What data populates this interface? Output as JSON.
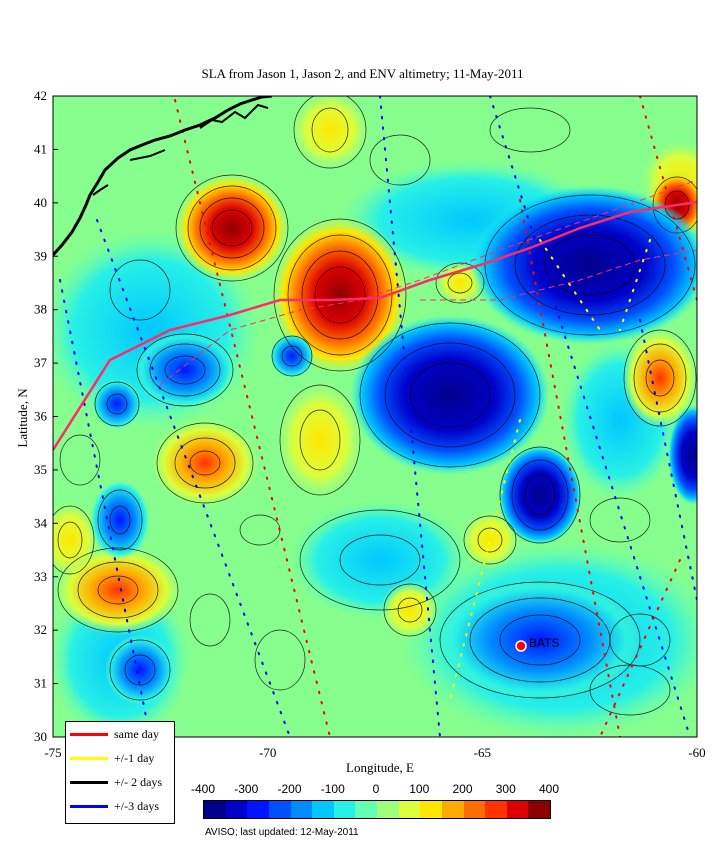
{
  "title": "SLA from Jason 1, Jason 2, and ENV altimetry;  11-May-2011",
  "axes": {
    "xlabel": "Longitude, E",
    "ylabel": "Latitude, N",
    "x_ticks": [
      "-75",
      "-70",
      "-65",
      "-60"
    ],
    "y_ticks": [
      "42",
      "41",
      "40",
      "39",
      "38",
      "37",
      "36",
      "35",
      "34",
      "33",
      "32",
      "31",
      "30"
    ]
  },
  "legend": {
    "items": [
      {
        "label": "same day",
        "color": "#ff0000"
      },
      {
        "label": "+/-1 day",
        "color": "#ffff00"
      },
      {
        "label": "+/- 2 days",
        "color": "#000000"
      },
      {
        "label": "+/-3 days",
        "color": "#0000ff"
      }
    ]
  },
  "colorbar": {
    "ticks": [
      "-400",
      "-300",
      "-200",
      "-100",
      "0",
      "100",
      "200",
      "300",
      "400"
    ],
    "colors": [
      "#00008c",
      "#0000c8",
      "#0014ff",
      "#0050ff",
      "#008cff",
      "#00c8ff",
      "#28f0e6",
      "#64ffb4",
      "#a0ff78",
      "#dcff3c",
      "#ffe600",
      "#ffaa00",
      "#ff6e00",
      "#ff3200",
      "#dc0000",
      "#8c0000"
    ]
  },
  "marker": {
    "label": "BATS",
    "color": "#ff0000"
  },
  "credit": "AVISO; last updated: 12-May-2011",
  "map_extent": {
    "lon": [
      -75,
      -60
    ],
    "lat": [
      30,
      42
    ]
  }
}
